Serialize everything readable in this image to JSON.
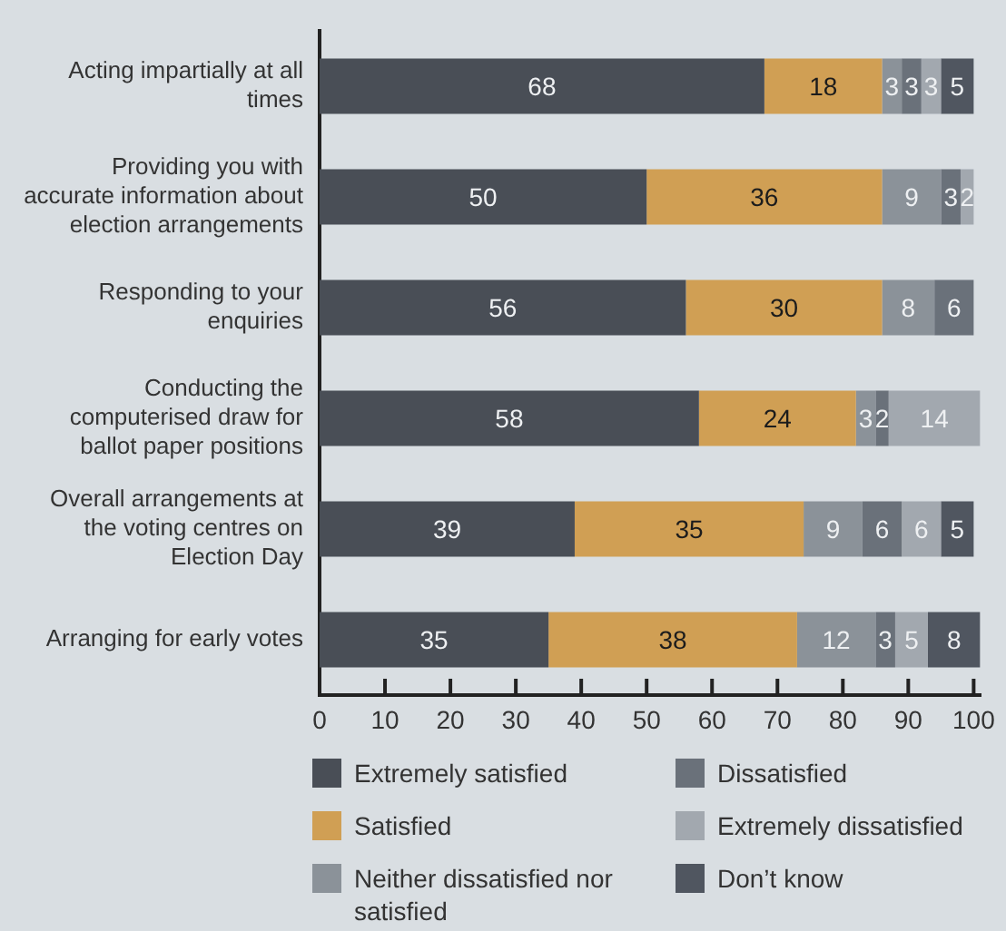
{
  "chart_data": {
    "type": "bar",
    "orientation": "horizontal",
    "stacked": true,
    "categories": [
      "Acting impartially at all times",
      "Providing you with accurate information about election arrangements",
      "Responding to your enquiries",
      "Conducting the computerised draw for ballot paper positions",
      "Overall arrangements at the voting centres on Election Day",
      "Arranging for early votes"
    ],
    "series": [
      {
        "name": "Extremely satisfied",
        "color": "#494e56",
        "values": [
          68,
          50,
          56,
          58,
          39,
          35
        ]
      },
      {
        "name": "Satisfied",
        "color": "#d09f54",
        "values": [
          18,
          36,
          30,
          24,
          35,
          38
        ]
      },
      {
        "name": "Neither dissatisfied nor satisfied",
        "color": "#8b9299",
        "values": [
          3,
          9,
          8,
          3,
          9,
          12
        ]
      },
      {
        "name": "Dissatisfied",
        "color": "#6a717a",
        "values": [
          3,
          3,
          6,
          2,
          6,
          3
        ]
      },
      {
        "name": "Extremely dissatisfied",
        "color": "#a2a8af",
        "values": [
          3,
          2,
          null,
          14,
          6,
          5
        ]
      },
      {
        "name": "Don’t know",
        "color": "#505660",
        "values": [
          5,
          null,
          null,
          null,
          5,
          8
        ]
      }
    ],
    "xlim": [
      0,
      101
    ],
    "xticks": [
      0,
      10,
      20,
      30,
      40,
      50,
      60,
      70,
      80,
      90,
      100
    ],
    "data_labels": true,
    "legend": "bottom"
  }
}
